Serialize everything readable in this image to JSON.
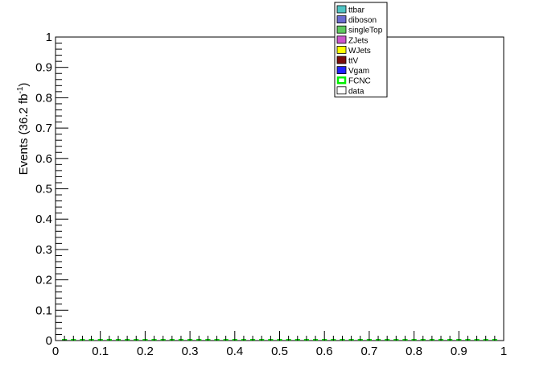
{
  "chart_data": {
    "type": "bar",
    "title": "",
    "xlabel": "",
    "ylabel": "Events (36.2 fb",
    "ylabel_sup": "-1",
    "ylabel_close": ")",
    "xlim": [
      0,
      1
    ],
    "ylim": [
      0,
      1
    ],
    "x_ticks": [
      "0",
      "0.1",
      "0.2",
      "0.3",
      "0.4",
      "0.5",
      "0.6",
      "0.7",
      "0.8",
      "0.9",
      "1"
    ],
    "y_ticks": [
      "0",
      "0.1",
      "0.2",
      "0.3",
      "0.4",
      "0.5",
      "0.6",
      "0.7",
      "0.8",
      "0.9",
      "1"
    ],
    "grid": false,
    "legend_position": "top-center",
    "series": [
      {
        "name": "ttbar",
        "color": "#4fc4c4",
        "style": "fill",
        "values": []
      },
      {
        "name": "diboson",
        "color": "#6a6ad0",
        "style": "fill",
        "values": []
      },
      {
        "name": "singleTop",
        "color": "#5ec95e",
        "style": "fill",
        "values": []
      },
      {
        "name": "ZJets",
        "color": "#cc55cc",
        "style": "fill",
        "values": []
      },
      {
        "name": "WJets",
        "color": "#ffff00",
        "style": "fill",
        "values": []
      },
      {
        "name": "ttV",
        "color": "#7a0c0c",
        "style": "fill",
        "values": []
      },
      {
        "name": "Vgam",
        "color": "#2020ff",
        "style": "fill",
        "values": []
      },
      {
        "name": "FCNC",
        "color": "#00ee00",
        "style": "line",
        "values": []
      },
      {
        "name": "data",
        "color": "#ffffff",
        "style": "marker",
        "values": []
      }
    ],
    "fcnc_line": {
      "color": "#00cc00",
      "bin_edges": [
        0.02,
        0.04,
        0.06,
        0.08,
        0.1,
        0.12,
        0.14,
        0.16,
        0.18,
        0.2,
        0.22,
        0.24,
        0.26,
        0.28,
        0.3,
        0.32,
        0.34,
        0.36,
        0.38,
        0.4,
        0.42,
        0.44,
        0.46,
        0.48,
        0.5,
        0.52,
        0.54,
        0.56,
        0.58,
        0.6,
        0.62,
        0.64,
        0.66,
        0.68,
        0.7,
        0.72,
        0.74,
        0.76,
        0.78,
        0.8,
        0.82,
        0.84,
        0.86,
        0.88,
        0.9,
        0.92,
        0.94,
        0.96,
        0.98
      ],
      "y": 0
    }
  }
}
